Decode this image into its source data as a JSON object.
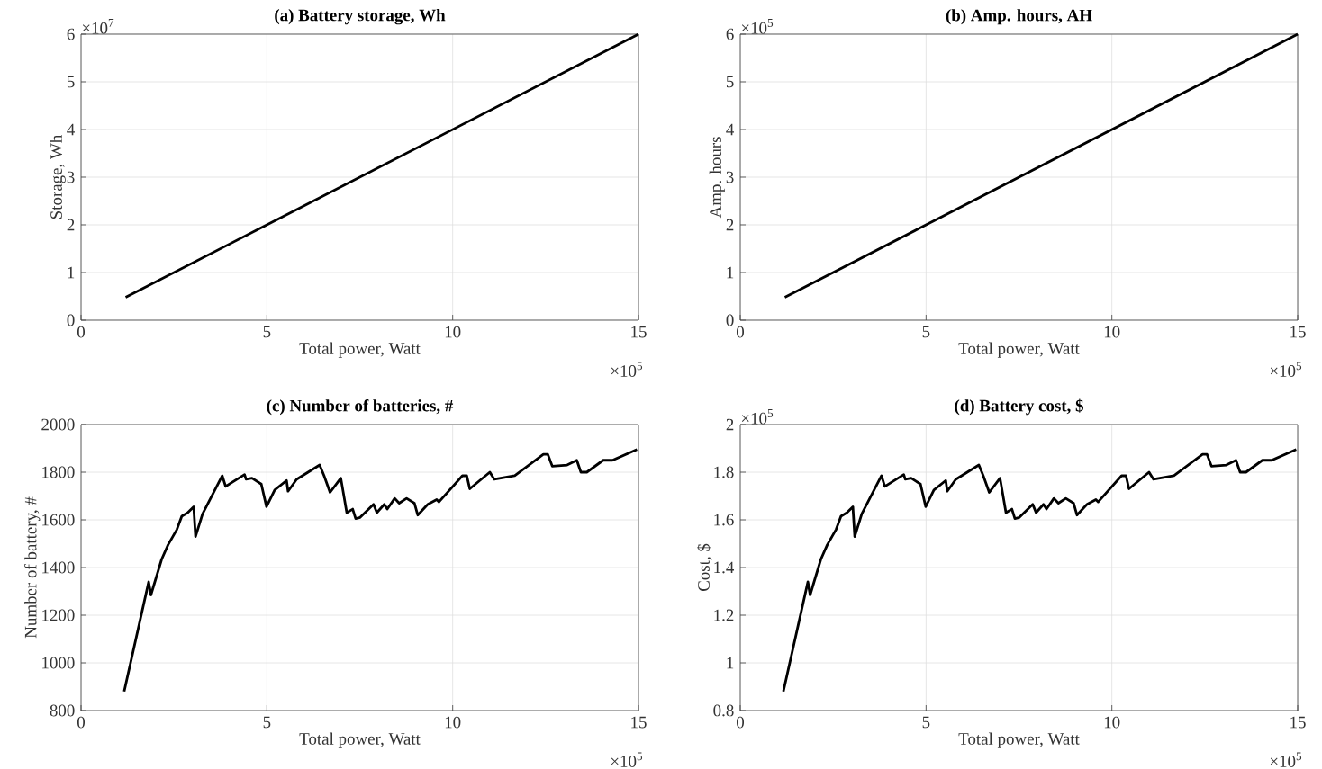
{
  "chart_data": [
    {
      "type": "line",
      "title": "(a) Battery storage, Wh",
      "xlabel": "Total power, Watt",
      "ylabel": "Storage, Wh",
      "annotations": [
        "×10$^{7}$",
        "×10$^{5}$"
      ],
      "xlim": [
        0,
        15
      ],
      "xticks": [
        0,
        5,
        10,
        15
      ],
      "ylim": [
        0,
        6
      ],
      "yticks": [
        0,
        1,
        2,
        3,
        4,
        5,
        6
      ],
      "grid": true,
      "series": [
        {
          "color": "#000000",
          "x": [
            1.2,
            15
          ],
          "values": [
            0.48,
            6
          ]
        }
      ]
    },
    {
      "type": "line",
      "title": "(b) Amp. hours, AH",
      "xlabel": "Total power, Watt",
      "ylabel": "Amp. hours",
      "annotations": [
        "×10$^{5}$",
        "×10$^{5}$"
      ],
      "xlim": [
        0,
        15
      ],
      "xticks": [
        0,
        5,
        10,
        15
      ],
      "ylim": [
        0,
        6
      ],
      "yticks": [
        0,
        1,
        2,
        3,
        4,
        5,
        6
      ],
      "grid": true,
      "series": [
        {
          "color": "#000000",
          "x": [
            1.2,
            15
          ],
          "values": [
            0.48,
            6
          ]
        }
      ]
    },
    {
      "type": "line",
      "title": "(c) Number of batteries, #",
      "xlabel": "Total power, Watt",
      "ylabel": "Number of battery, #",
      "annotations": [
        "×10$^{5}$"
      ],
      "xlim": [
        0,
        15
      ],
      "xticks": [
        0,
        5,
        10,
        15
      ],
      "ylim": [
        800,
        2000
      ],
      "yticks": [
        800,
        1000,
        1200,
        1400,
        1600,
        1800,
        2000
      ],
      "grid": true,
      "series": [
        {
          "color": "#000000",
          "x": [
            1.16,
            1.82,
            1.88,
            2.17,
            2.34,
            2.58,
            2.71,
            2.87,
            3.03,
            3.08,
            3.27,
            3.8,
            3.89,
            4.4,
            4.44,
            4.6,
            4.85,
            4.99,
            5.21,
            5.53,
            5.57,
            5.8,
            6.42,
            6.54,
            6.7,
            6.99,
            7.15,
            7.31,
            7.39,
            7.51,
            7.87,
            7.96,
            8.16,
            8.24,
            8.44,
            8.56,
            8.76,
            8.97,
            9.06,
            9.33,
            9.57,
            9.63,
            10.26,
            10.38,
            10.46,
            11.0,
            11.12,
            11.67,
            12.44,
            12.56,
            12.68,
            13.08,
            13.34,
            13.45,
            13.61,
            14.05,
            14.3,
            14.96
          ],
          "values": [
            880,
            1340,
            1285,
            1435,
            1495,
            1560,
            1615,
            1630,
            1655,
            1530,
            1625,
            1785,
            1740,
            1790,
            1770,
            1775,
            1750,
            1655,
            1725,
            1765,
            1720,
            1770,
            1830,
            1785,
            1715,
            1775,
            1630,
            1645,
            1605,
            1610,
            1665,
            1630,
            1665,
            1645,
            1690,
            1670,
            1690,
            1670,
            1620,
            1665,
            1685,
            1675,
            1785,
            1785,
            1730,
            1800,
            1770,
            1785,
            1875,
            1875,
            1825,
            1830,
            1850,
            1800,
            1800,
            1850,
            1850,
            1895
          ]
        }
      ]
    },
    {
      "type": "line",
      "title": "(d) Battery cost, $",
      "xlabel": "Total power, Watt",
      "ylabel": "Cost, $",
      "annotations": [
        "×10$^{5}$",
        "×10$^{5}$"
      ],
      "xlim": [
        0,
        15
      ],
      "xticks": [
        0,
        5,
        10,
        15
      ],
      "ylim": [
        0.8,
        2
      ],
      "yticks": [
        0.8,
        1,
        1.2,
        1.4,
        1.6,
        1.8,
        2
      ],
      "grid": true,
      "series": [
        {
          "color": "#000000",
          "x": [
            1.16,
            1.82,
            1.88,
            2.17,
            2.34,
            2.58,
            2.71,
            2.87,
            3.03,
            3.08,
            3.27,
            3.8,
            3.89,
            4.4,
            4.44,
            4.6,
            4.85,
            4.99,
            5.21,
            5.53,
            5.57,
            5.8,
            6.42,
            6.54,
            6.7,
            6.99,
            7.15,
            7.31,
            7.39,
            7.51,
            7.87,
            7.96,
            8.16,
            8.24,
            8.44,
            8.56,
            8.76,
            8.97,
            9.06,
            9.33,
            9.57,
            9.63,
            10.26,
            10.38,
            10.46,
            11.0,
            11.12,
            11.67,
            12.44,
            12.56,
            12.68,
            13.08,
            13.34,
            13.45,
            13.61,
            14.05,
            14.3,
            14.96
          ],
          "values": [
            0.88,
            1.34,
            1.285,
            1.435,
            1.495,
            1.56,
            1.615,
            1.63,
            1.655,
            1.53,
            1.625,
            1.785,
            1.74,
            1.79,
            1.77,
            1.775,
            1.75,
            1.655,
            1.725,
            1.765,
            1.72,
            1.77,
            1.83,
            1.785,
            1.715,
            1.775,
            1.63,
            1.645,
            1.605,
            1.61,
            1.665,
            1.63,
            1.665,
            1.645,
            1.69,
            1.67,
            1.69,
            1.67,
            1.62,
            1.665,
            1.685,
            1.675,
            1.785,
            1.785,
            1.73,
            1.8,
            1.77,
            1.785,
            1.875,
            1.875,
            1.825,
            1.83,
            1.85,
            1.8,
            1.8,
            1.85,
            1.85,
            1.895
          ]
        }
      ]
    }
  ]
}
